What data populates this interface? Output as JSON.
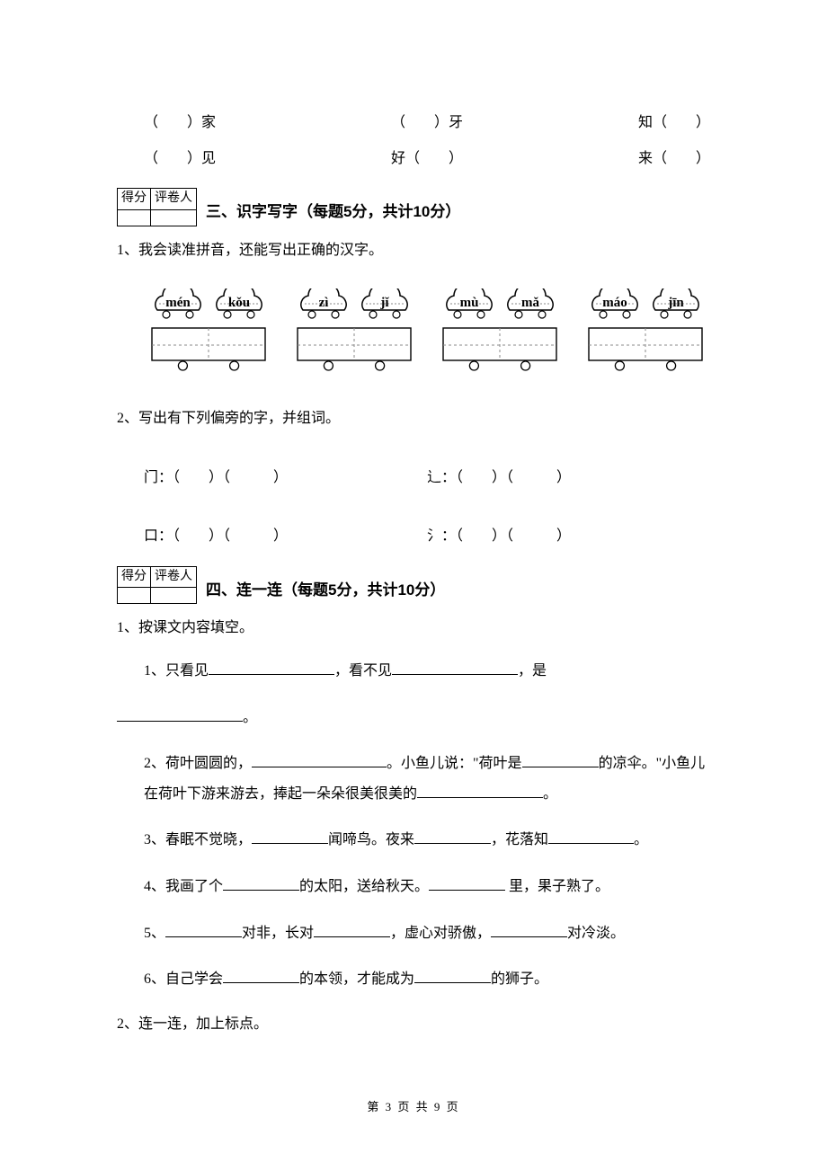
{
  "topFill": {
    "row1": [
      "（　　）家",
      "（　　）牙",
      "知（　　）"
    ],
    "row2": [
      "（　　）见",
      "好（　　）",
      "来（　　）"
    ]
  },
  "scoreHeaders": {
    "score": "得分",
    "grader": "评卷人"
  },
  "section3": {
    "title": "三、识字写字（每题5分，共计10分）",
    "q1": "1、我会读准拼音，还能写出正确的汉字。",
    "pinyin": [
      [
        "mén",
        "kǒu"
      ],
      [
        "zì",
        "jǐ"
      ],
      [
        "mù",
        "mǎ"
      ],
      [
        "máo",
        "jīn"
      ]
    ],
    "q2": "2、写出有下列偏旁的字，并组词。",
    "radicals": {
      "r1": [
        {
          "rad": "门",
          "blanks": [
            "（　　）（　　　）"
          ]
        },
        {
          "rad": "辶",
          "blanks": [
            "（　　）（　　　）"
          ]
        }
      ],
      "r2": [
        {
          "rad": "口",
          "blanks": [
            "（　　）（　　　）"
          ]
        },
        {
          "rad": "氵",
          "blanks": [
            "（　　）（　　　）"
          ]
        }
      ]
    }
  },
  "section4": {
    "title": "四、连一连（每题5分，共计10分）",
    "q1": "1、按课文内容填空。",
    "lines": [
      {
        "n": "1、",
        "parts": [
          "只看见",
          "，看不见",
          "，是"
        ],
        "blanks": [
          140,
          140
        ],
        "trailingBlank": 140,
        "trailingPunct": "。"
      },
      {
        "n": "2、",
        "parts": [
          "荷叶圆圆的，",
          "。小鱼儿说：\"荷叶是",
          "的凉伞。\"小鱼儿在荷叶下游来游去，捧起一朵朵很美很美的",
          "。"
        ],
        "blanks": [
          150,
          85,
          140
        ]
      },
      {
        "n": "3、",
        "parts": [
          "春眠不觉晓，",
          "闻啼鸟。夜来",
          "，花落知",
          "。"
        ],
        "blanks": [
          85,
          85,
          95
        ]
      },
      {
        "n": "4、",
        "parts": [
          "我画了个",
          "的太阳，送给秋天。",
          " 里，果子熟了。"
        ],
        "blanks": [
          85,
          85
        ]
      },
      {
        "n": "5、",
        "parts": [
          "",
          "对非，长对",
          "，虚心对骄傲，",
          "对冷淡。"
        ],
        "blanks": [
          85,
          85,
          85
        ]
      },
      {
        "n": "6、",
        "parts": [
          "自己学会",
          "的本领，才能成为",
          "的狮子。"
        ],
        "blanks": [
          85,
          85
        ]
      }
    ],
    "q2": "2、连一连，加上标点。"
  },
  "footer": "第 3 页 共 9 页",
  "colors": {
    "text": "#000000",
    "bg": "#ffffff",
    "line": "#000000",
    "dashed": "#888888"
  }
}
